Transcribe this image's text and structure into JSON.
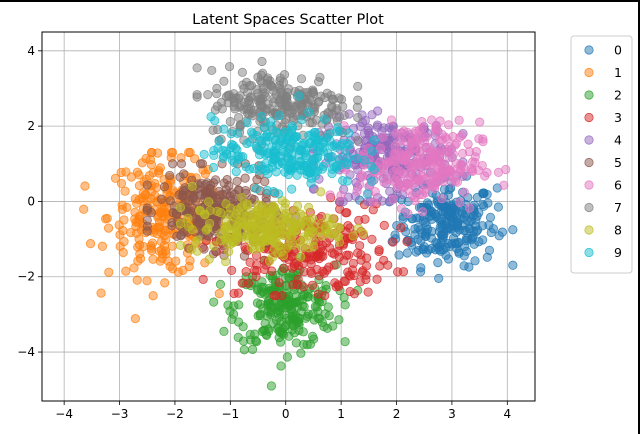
{
  "chart_data": {
    "type": "scatter",
    "title": "Latent Spaces Scatter Plot",
    "xlabel": "",
    "ylabel": "",
    "xlim": [
      -4.4,
      4.5
    ],
    "ylim": [
      -5.3,
      4.5
    ],
    "x_ticks": [
      -4,
      -3,
      -2,
      -1,
      0,
      1,
      2,
      3,
      4
    ],
    "y_ticks": [
      -4,
      -2,
      0,
      2,
      4
    ],
    "grid": true,
    "legend_position": "upper-right-outside",
    "marker_alpha": 0.5,
    "series": [
      {
        "name": "0",
        "color": "#1f77b4",
        "center": [
          2.9,
          -0.6
        ],
        "spread": [
          0.45,
          0.55
        ],
        "range_x": [
          1.2,
          4.1
        ],
        "range_y": [
          -2.7,
          0.8
        ]
      },
      {
        "name": "1",
        "color": "#ff7f0e",
        "center": [
          -2.2,
          -0.4
        ],
        "spread": [
          0.5,
          0.8
        ],
        "range_x": [
          -4.0,
          -1.2
        ],
        "range_y": [
          -3.3,
          1.3
        ]
      },
      {
        "name": "2",
        "color": "#2ca02c",
        "center": [
          0.0,
          -2.8
        ],
        "spread": [
          0.45,
          0.55
        ],
        "range_x": [
          -1.3,
          1.3
        ],
        "range_y": [
          -4.9,
          -1.0
        ]
      },
      {
        "name": "3",
        "color": "#d62728",
        "center": [
          0.3,
          -1.3
        ],
        "spread": [
          0.8,
          0.6
        ],
        "range_x": [
          -2.6,
          2.6
        ],
        "range_y": [
          -2.5,
          0.8
        ]
      },
      {
        "name": "4",
        "color": "#9467bd",
        "center": [
          1.8,
          1.2
        ],
        "spread": [
          0.6,
          0.5
        ],
        "range_x": [
          0.5,
          3.2
        ],
        "range_y": [
          0.0,
          2.6
        ]
      },
      {
        "name": "5",
        "color": "#8c564b",
        "center": [
          -1.3,
          -0.2
        ],
        "spread": [
          0.5,
          0.5
        ],
        "range_x": [
          -2.5,
          0.3
        ],
        "range_y": [
          -1.5,
          1.0
        ]
      },
      {
        "name": "6",
        "color": "#e377c2",
        "center": [
          2.4,
          1.0
        ],
        "spread": [
          0.55,
          0.55
        ],
        "range_x": [
          0.8,
          4.0
        ],
        "range_y": [
          -1.6,
          2.5
        ]
      },
      {
        "name": "7",
        "color": "#7f7f7f",
        "center": [
          -0.1,
          2.6
        ],
        "spread": [
          0.65,
          0.45
        ],
        "range_x": [
          -1.6,
          1.3
        ],
        "range_y": [
          1.2,
          4.0
        ]
      },
      {
        "name": "8",
        "color": "#bcbd22",
        "center": [
          -0.4,
          -0.7
        ],
        "spread": [
          0.65,
          0.35
        ],
        "range_x": [
          -1.9,
          1.4
        ],
        "range_y": [
          -1.6,
          0.4
        ]
      },
      {
        "name": "9",
        "color": "#17becf",
        "center": [
          0.0,
          1.3
        ],
        "spread": [
          0.65,
          0.45
        ],
        "range_x": [
          -1.8,
          1.6
        ],
        "range_y": [
          0.2,
          2.8
        ]
      }
    ]
  }
}
